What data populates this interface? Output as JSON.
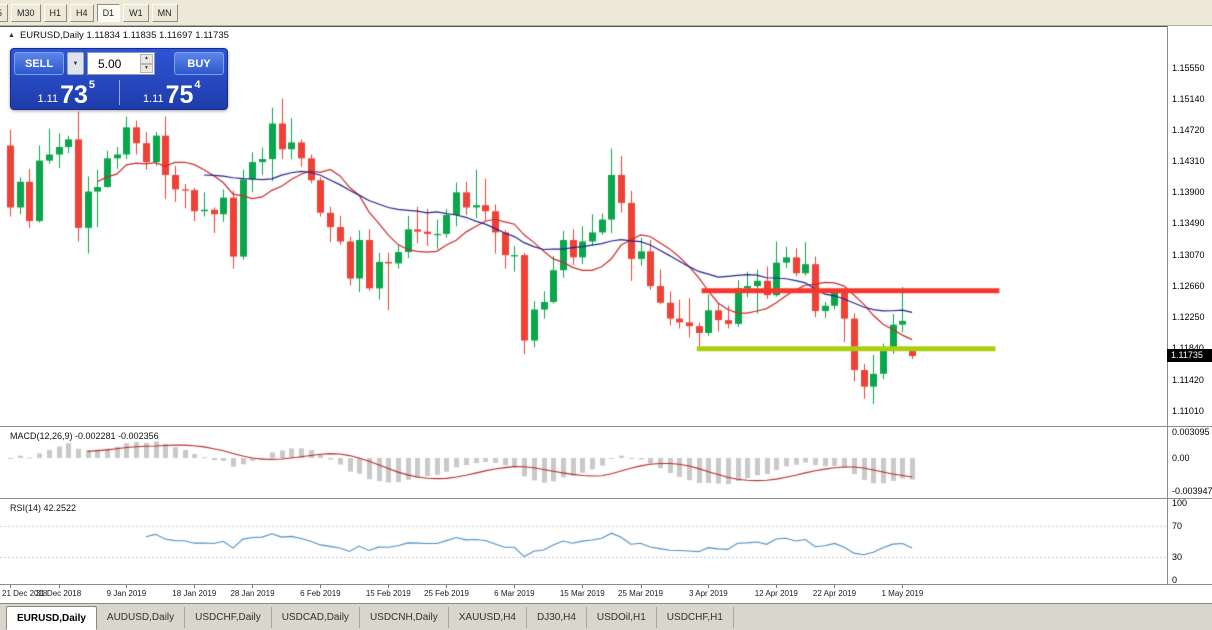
{
  "toolbar": {
    "timeframes": [
      {
        "label": "5",
        "active": false
      },
      {
        "label": "M30",
        "active": false
      },
      {
        "label": "H1",
        "active": false
      },
      {
        "label": "H4",
        "active": false
      },
      {
        "label": "D1",
        "active": true
      },
      {
        "label": "W1",
        "active": false
      },
      {
        "label": "MN",
        "active": false
      }
    ]
  },
  "chart": {
    "header_text": "EURUSD,Daily  1.11834 1.11835 1.11697 1.11735",
    "symbol": "EURUSD",
    "period": "Daily"
  },
  "trade_panel": {
    "sell_label": "SELL",
    "buy_label": "BUY",
    "volume": "5.00",
    "sell_price": {
      "prefix": "1.11",
      "big": "73",
      "sup": "5"
    },
    "buy_price": {
      "prefix": "1.11",
      "big": "75",
      "sup": "4"
    }
  },
  "chart_data": {
    "type": "candlestick",
    "symbol": "EURUSD",
    "timeframe": "Daily",
    "current_ohlc": {
      "open": "1.11834",
      "high": "1.11835",
      "low": "1.11697",
      "close": "1.11735"
    },
    "price_tag": "1.11735",
    "up_color": "#0aa64c",
    "down_color": "#ef4136",
    "price_scale": [
      "1.15550",
      "1.15140",
      "1.14720",
      "1.14310",
      "1.13900",
      "1.13490",
      "1.13070",
      "1.12660",
      "1.12250",
      "1.11840",
      "1.11420",
      "1.11010"
    ],
    "date_ticks": [
      {
        "label": "21 Dec 2018",
        "index": 0
      },
      {
        "label": "31 Dec 2018",
        "index": 5
      },
      {
        "label": "9 Jan 2019",
        "index": 12
      },
      {
        "label": "18 Jan 2019",
        "index": 19
      },
      {
        "label": "28 Jan 2019",
        "index": 25
      },
      {
        "label": "6 Feb 2019",
        "index": 32
      },
      {
        "label": "15 Feb 2019",
        "index": 39
      },
      {
        "label": "25 Feb 2019",
        "index": 45
      },
      {
        "label": "6 Mar 2019",
        "index": 52
      },
      {
        "label": "15 Mar 2019",
        "index": 59
      },
      {
        "label": "25 Mar 2019",
        "index": 65
      },
      {
        "label": "3 Apr 2019",
        "index": 72
      },
      {
        "label": "12 Apr 2019",
        "index": 79
      },
      {
        "label": "22 Apr 2019",
        "index": 85
      },
      {
        "label": "1 May 2019",
        "index": 92
      }
    ],
    "candles": [
      [
        1.1452,
        1.1473,
        1.1358,
        1.137
      ],
      [
        1.137,
        1.141,
        1.1361,
        1.1404
      ],
      [
        1.1404,
        1.1421,
        1.1343,
        1.1352
      ],
      [
        1.1352,
        1.1452,
        1.135,
        1.1432
      ],
      [
        1.1432,
        1.1474,
        1.1428,
        1.144
      ],
      [
        1.144,
        1.1468,
        1.1422,
        1.145
      ],
      [
        1.145,
        1.1465,
        1.1442,
        1.146
      ],
      [
        1.146,
        1.1497,
        1.1325,
        1.1343
      ],
      [
        1.1343,
        1.1411,
        1.1309,
        1.1391
      ],
      [
        1.1391,
        1.142,
        1.1344,
        1.1397
      ],
      [
        1.1397,
        1.1445,
        1.1396,
        1.1435
      ],
      [
        1.1435,
        1.145,
        1.1421,
        1.144
      ],
      [
        1.144,
        1.149,
        1.1434,
        1.1476
      ],
      [
        1.1476,
        1.1485,
        1.144,
        1.1455
      ],
      [
        1.1455,
        1.147,
        1.142,
        1.143
      ],
      [
        1.143,
        1.147,
        1.1425,
        1.1465
      ],
      [
        1.1465,
        1.149,
        1.1381,
        1.1413
      ],
      [
        1.1413,
        1.1425,
        1.1377,
        1.1394
      ],
      [
        1.1394,
        1.1401,
        1.1369,
        1.1393
      ],
      [
        1.1393,
        1.1396,
        1.1352,
        1.1365
      ],
      [
        1.1365,
        1.139,
        1.1358,
        1.1367
      ],
      [
        1.1367,
        1.137,
        1.1336,
        1.1361
      ],
      [
        1.1361,
        1.1394,
        1.1351,
        1.1383
      ],
      [
        1.1383,
        1.1392,
        1.1289,
        1.1305
      ],
      [
        1.1305,
        1.142,
        1.1301,
        1.1407
      ],
      [
        1.1407,
        1.1443,
        1.139,
        1.143
      ],
      [
        1.143,
        1.1449,
        1.1413,
        1.1434
      ],
      [
        1.1434,
        1.1502,
        1.1405,
        1.1481
      ],
      [
        1.1481,
        1.1514,
        1.1434,
        1.1447
      ],
      [
        1.1447,
        1.1488,
        1.1434,
        1.1456
      ],
      [
        1.1456,
        1.146,
        1.1424,
        1.1435
      ],
      [
        1.1435,
        1.144,
        1.1402,
        1.1406
      ],
      [
        1.1406,
        1.141,
        1.1358,
        1.1363
      ],
      [
        1.1363,
        1.1371,
        1.1324,
        1.1344
      ],
      [
        1.1344,
        1.1359,
        1.1321,
        1.1325
      ],
      [
        1.1325,
        1.1331,
        1.1267,
        1.1276
      ],
      [
        1.1276,
        1.134,
        1.1258,
        1.1327
      ],
      [
        1.1327,
        1.1341,
        1.126,
        1.1263
      ],
      [
        1.1263,
        1.131,
        1.1248,
        1.1298
      ],
      [
        1.1298,
        1.131,
        1.1234,
        1.1296
      ],
      [
        1.1296,
        1.132,
        1.1289,
        1.1311
      ],
      [
        1.1311,
        1.1359,
        1.1303,
        1.1341
      ],
      [
        1.1341,
        1.1371,
        1.1323,
        1.1338
      ],
      [
        1.1338,
        1.1368,
        1.1319,
        1.1335
      ],
      [
        1.1335,
        1.1354,
        1.1315,
        1.1335
      ],
      [
        1.1335,
        1.1368,
        1.133,
        1.136
      ],
      [
        1.136,
        1.1403,
        1.1345,
        1.139
      ],
      [
        1.139,
        1.1404,
        1.136,
        1.137
      ],
      [
        1.137,
        1.142,
        1.1356,
        1.1373
      ],
      [
        1.1373,
        1.1408,
        1.1352,
        1.1365
      ],
      [
        1.1365,
        1.1374,
        1.1309,
        1.1337
      ],
      [
        1.1337,
        1.134,
        1.1289,
        1.1307
      ],
      [
        1.1307,
        1.1319,
        1.1285,
        1.1307
      ],
      [
        1.1307,
        1.131,
        1.1176,
        1.1194
      ],
      [
        1.1194,
        1.1246,
        1.1185,
        1.1235
      ],
      [
        1.1235,
        1.1259,
        1.1223,
        1.1245
      ],
      [
        1.1245,
        1.1306,
        1.1243,
        1.1287
      ],
      [
        1.1287,
        1.1339,
        1.1277,
        1.1327
      ],
      [
        1.1327,
        1.1341,
        1.1294,
        1.1304
      ],
      [
        1.1304,
        1.1345,
        1.1295,
        1.1325
      ],
      [
        1.1325,
        1.1361,
        1.1319,
        1.1337
      ],
      [
        1.1337,
        1.1362,
        1.1334,
        1.1354
      ],
      [
        1.1354,
        1.1448,
        1.1336,
        1.1413
      ],
      [
        1.1413,
        1.1438,
        1.1363,
        1.1376
      ],
      [
        1.1376,
        1.1392,
        1.1273,
        1.1302
      ],
      [
        1.1302,
        1.133,
        1.1293,
        1.1312
      ],
      [
        1.1312,
        1.1327,
        1.1261,
        1.1266
      ],
      [
        1.1266,
        1.1288,
        1.1242,
        1.1244
      ],
      [
        1.1244,
        1.1259,
        1.1214,
        1.1223
      ],
      [
        1.1223,
        1.1248,
        1.121,
        1.1218
      ],
      [
        1.1218,
        1.125,
        1.1198,
        1.1213
      ],
      [
        1.1213,
        1.1218,
        1.1183,
        1.1204
      ],
      [
        1.1204,
        1.1255,
        1.12,
        1.1234
      ],
      [
        1.1234,
        1.1243,
        1.1206,
        1.1221
      ],
      [
        1.1221,
        1.124,
        1.121,
        1.1216
      ],
      [
        1.1216,
        1.1274,
        1.1212,
        1.1263
      ],
      [
        1.1263,
        1.1285,
        1.1251,
        1.1266
      ],
      [
        1.1266,
        1.1288,
        1.123,
        1.1273
      ],
      [
        1.1273,
        1.1292,
        1.1249,
        1.1254
      ],
      [
        1.1254,
        1.1325,
        1.1252,
        1.1297
      ],
      [
        1.1297,
        1.1318,
        1.129,
        1.1304
      ],
      [
        1.1304,
        1.1316,
        1.1279,
        1.1283
      ],
      [
        1.1283,
        1.1324,
        1.128,
        1.1295
      ],
      [
        1.1295,
        1.1305,
        1.1225,
        1.1233
      ],
      [
        1.1233,
        1.1245,
        1.1224,
        1.124
      ],
      [
        1.124,
        1.1262,
        1.1235,
        1.1258
      ],
      [
        1.1258,
        1.1263,
        1.1192,
        1.1223
      ],
      [
        1.1223,
        1.123,
        1.114,
        1.1155
      ],
      [
        1.1155,
        1.1163,
        1.1117,
        1.1133
      ],
      [
        1.1133,
        1.1175,
        1.111,
        1.115
      ],
      [
        1.115,
        1.119,
        1.1143,
        1.1185
      ],
      [
        1.1185,
        1.1229,
        1.1176,
        1.1215
      ],
      [
        1.1215,
        1.1265,
        1.1205,
        1.122
      ],
      [
        1.11834,
        1.11835,
        1.11697,
        1.11735
      ]
    ],
    "moving_averages": [
      {
        "period": 10,
        "color": "#cc2b2b"
      },
      {
        "period": 21,
        "color": "#23238e"
      }
    ],
    "overlays": [
      {
        "type": "horizontal-segment",
        "role": "resistance",
        "price": 1.126,
        "from_index": 71.3,
        "to_index": 102,
        "color": "#f5372b",
        "width": 5
      },
      {
        "type": "horizontal-segment",
        "role": "support",
        "price": 1.1183,
        "from_index": 70.8,
        "to_index": 101.6,
        "color": "#abcf0f",
        "width": 5
      }
    ],
    "indicators": [
      {
        "name": "MACD",
        "params": "12,26,9",
        "label": "MACD(12,26,9) -0.002281 -0.002356",
        "main_value": "-0.002281",
        "signal_value": "-0.002356",
        "scale": [
          "0.003095",
          "0.00",
          "-0.003947"
        ],
        "histogram_color": "#c9c9c9",
        "signal_color": "#b92a2a"
      },
      {
        "name": "RSI",
        "params": "14",
        "label": "RSI(14) 42.2522",
        "value": "42.2522",
        "scale": [
          "100",
          "70",
          "30",
          "0"
        ],
        "levels": [
          70,
          30
        ],
        "line_color": "#4d8fc4"
      }
    ]
  },
  "tabs": [
    {
      "label": "EURUSD,Daily",
      "active": true
    },
    {
      "label": "AUDUSD,Daily",
      "active": false
    },
    {
      "label": "USDCHF,Daily",
      "active": false
    },
    {
      "label": "USDCAD,Daily",
      "active": false
    },
    {
      "label": "USDCNH,Daily",
      "active": false
    },
    {
      "label": "XAUUSD,H4",
      "active": false
    },
    {
      "label": "DJ30,H4",
      "active": false
    },
    {
      "label": "USDOil,H1",
      "active": false
    },
    {
      "label": "USDCHF,H1",
      "active": false
    }
  ]
}
